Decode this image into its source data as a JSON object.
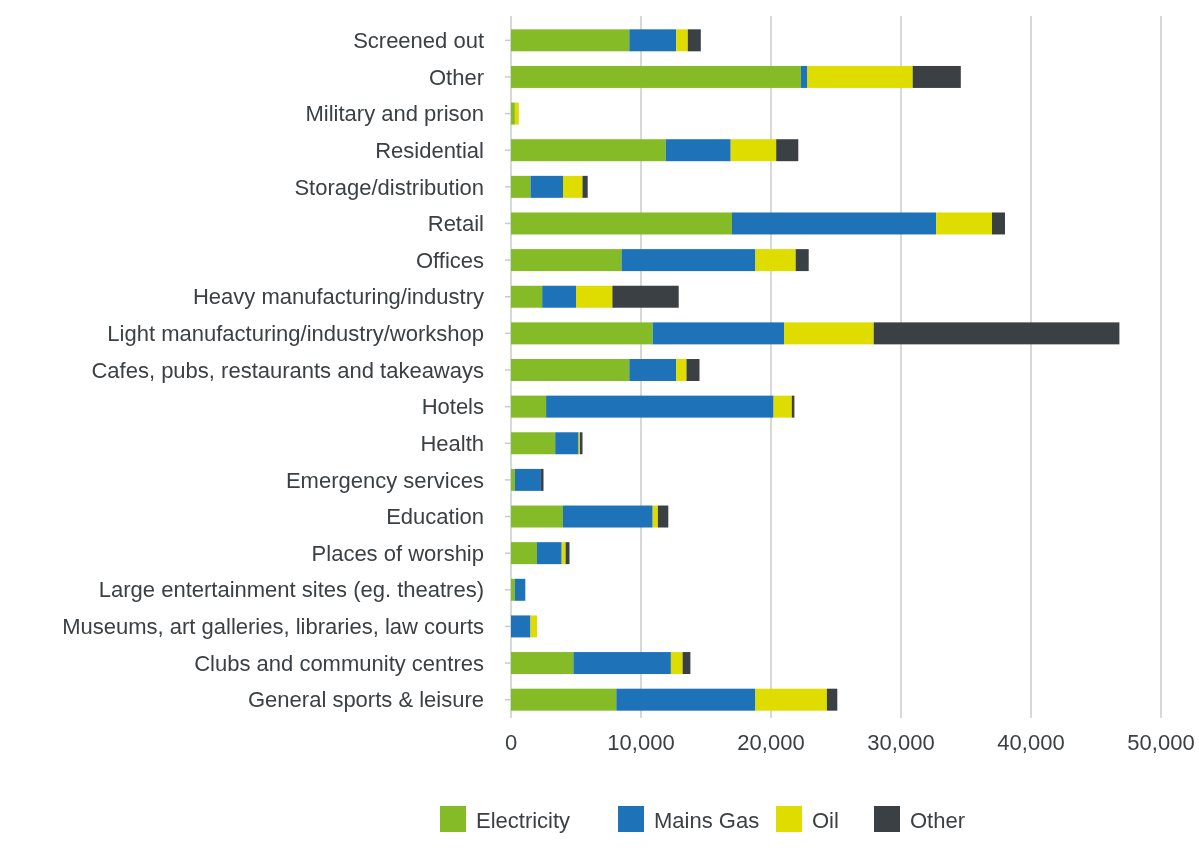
{
  "chart_data": {
    "type": "bar",
    "orientation": "horizontal",
    "stacked": true,
    "categories": [
      "Screened out",
      "Other",
      "Military and prison",
      "Residential",
      "Storage/distribution",
      "Retail",
      "Offices",
      "Heavy manufacturing/industry",
      "Light manufacturing/industry/workshop",
      "Cafes, pubs, restaurants and takeaways",
      "Hotels",
      "Health",
      "Emergency services",
      "Education",
      "Places of worship",
      "Large entertainment sites (eg. theatres)",
      "Museums, art galleries, libraries, law courts",
      "Clubs and community centres",
      "General sports & leisure"
    ],
    "series": [
      {
        "name": "Electricity",
        "color": "#84bb27",
        "values": [
          9100,
          22300,
          300,
          11900,
          1500,
          17000,
          8500,
          2400,
          10900,
          9100,
          2700,
          3400,
          300,
          4000,
          2000,
          300,
          0,
          4800,
          8100
        ]
      },
      {
        "name": "Mains Gas",
        "color": "#1e72b8",
        "values": [
          3600,
          500,
          0,
          5000,
          2500,
          15700,
          10300,
          2600,
          10100,
          3600,
          17500,
          1800,
          2000,
          6900,
          1900,
          800,
          1500,
          7500,
          10700
        ]
      },
      {
        "name": "Oil",
        "color": "#dfdc00",
        "values": [
          900,
          8100,
          300,
          3500,
          1500,
          4300,
          3100,
          2800,
          6900,
          800,
          1400,
          100,
          0,
          400,
          300,
          0,
          500,
          900,
          5500
        ]
      },
      {
        "name": "Other",
        "color": "#3b4044",
        "values": [
          1000,
          3700,
          0,
          1700,
          400,
          1000,
          1000,
          5100,
          18900,
          1000,
          200,
          200,
          200,
          800,
          300,
          0,
          0,
          600,
          800
        ]
      }
    ],
    "xlim": [
      0,
      50000
    ],
    "xticks": [
      0,
      {
        "value": 10000,
        "label": "10,000"
      },
      {
        "value": 20000,
        "label": "20,000"
      },
      {
        "value": 30000,
        "label": "30,000"
      },
      {
        "value": 40000,
        "label": "40,000"
      },
      {
        "value": 50000,
        "label": "50,000"
      }
    ],
    "grid": "x",
    "legend": "bottom"
  }
}
